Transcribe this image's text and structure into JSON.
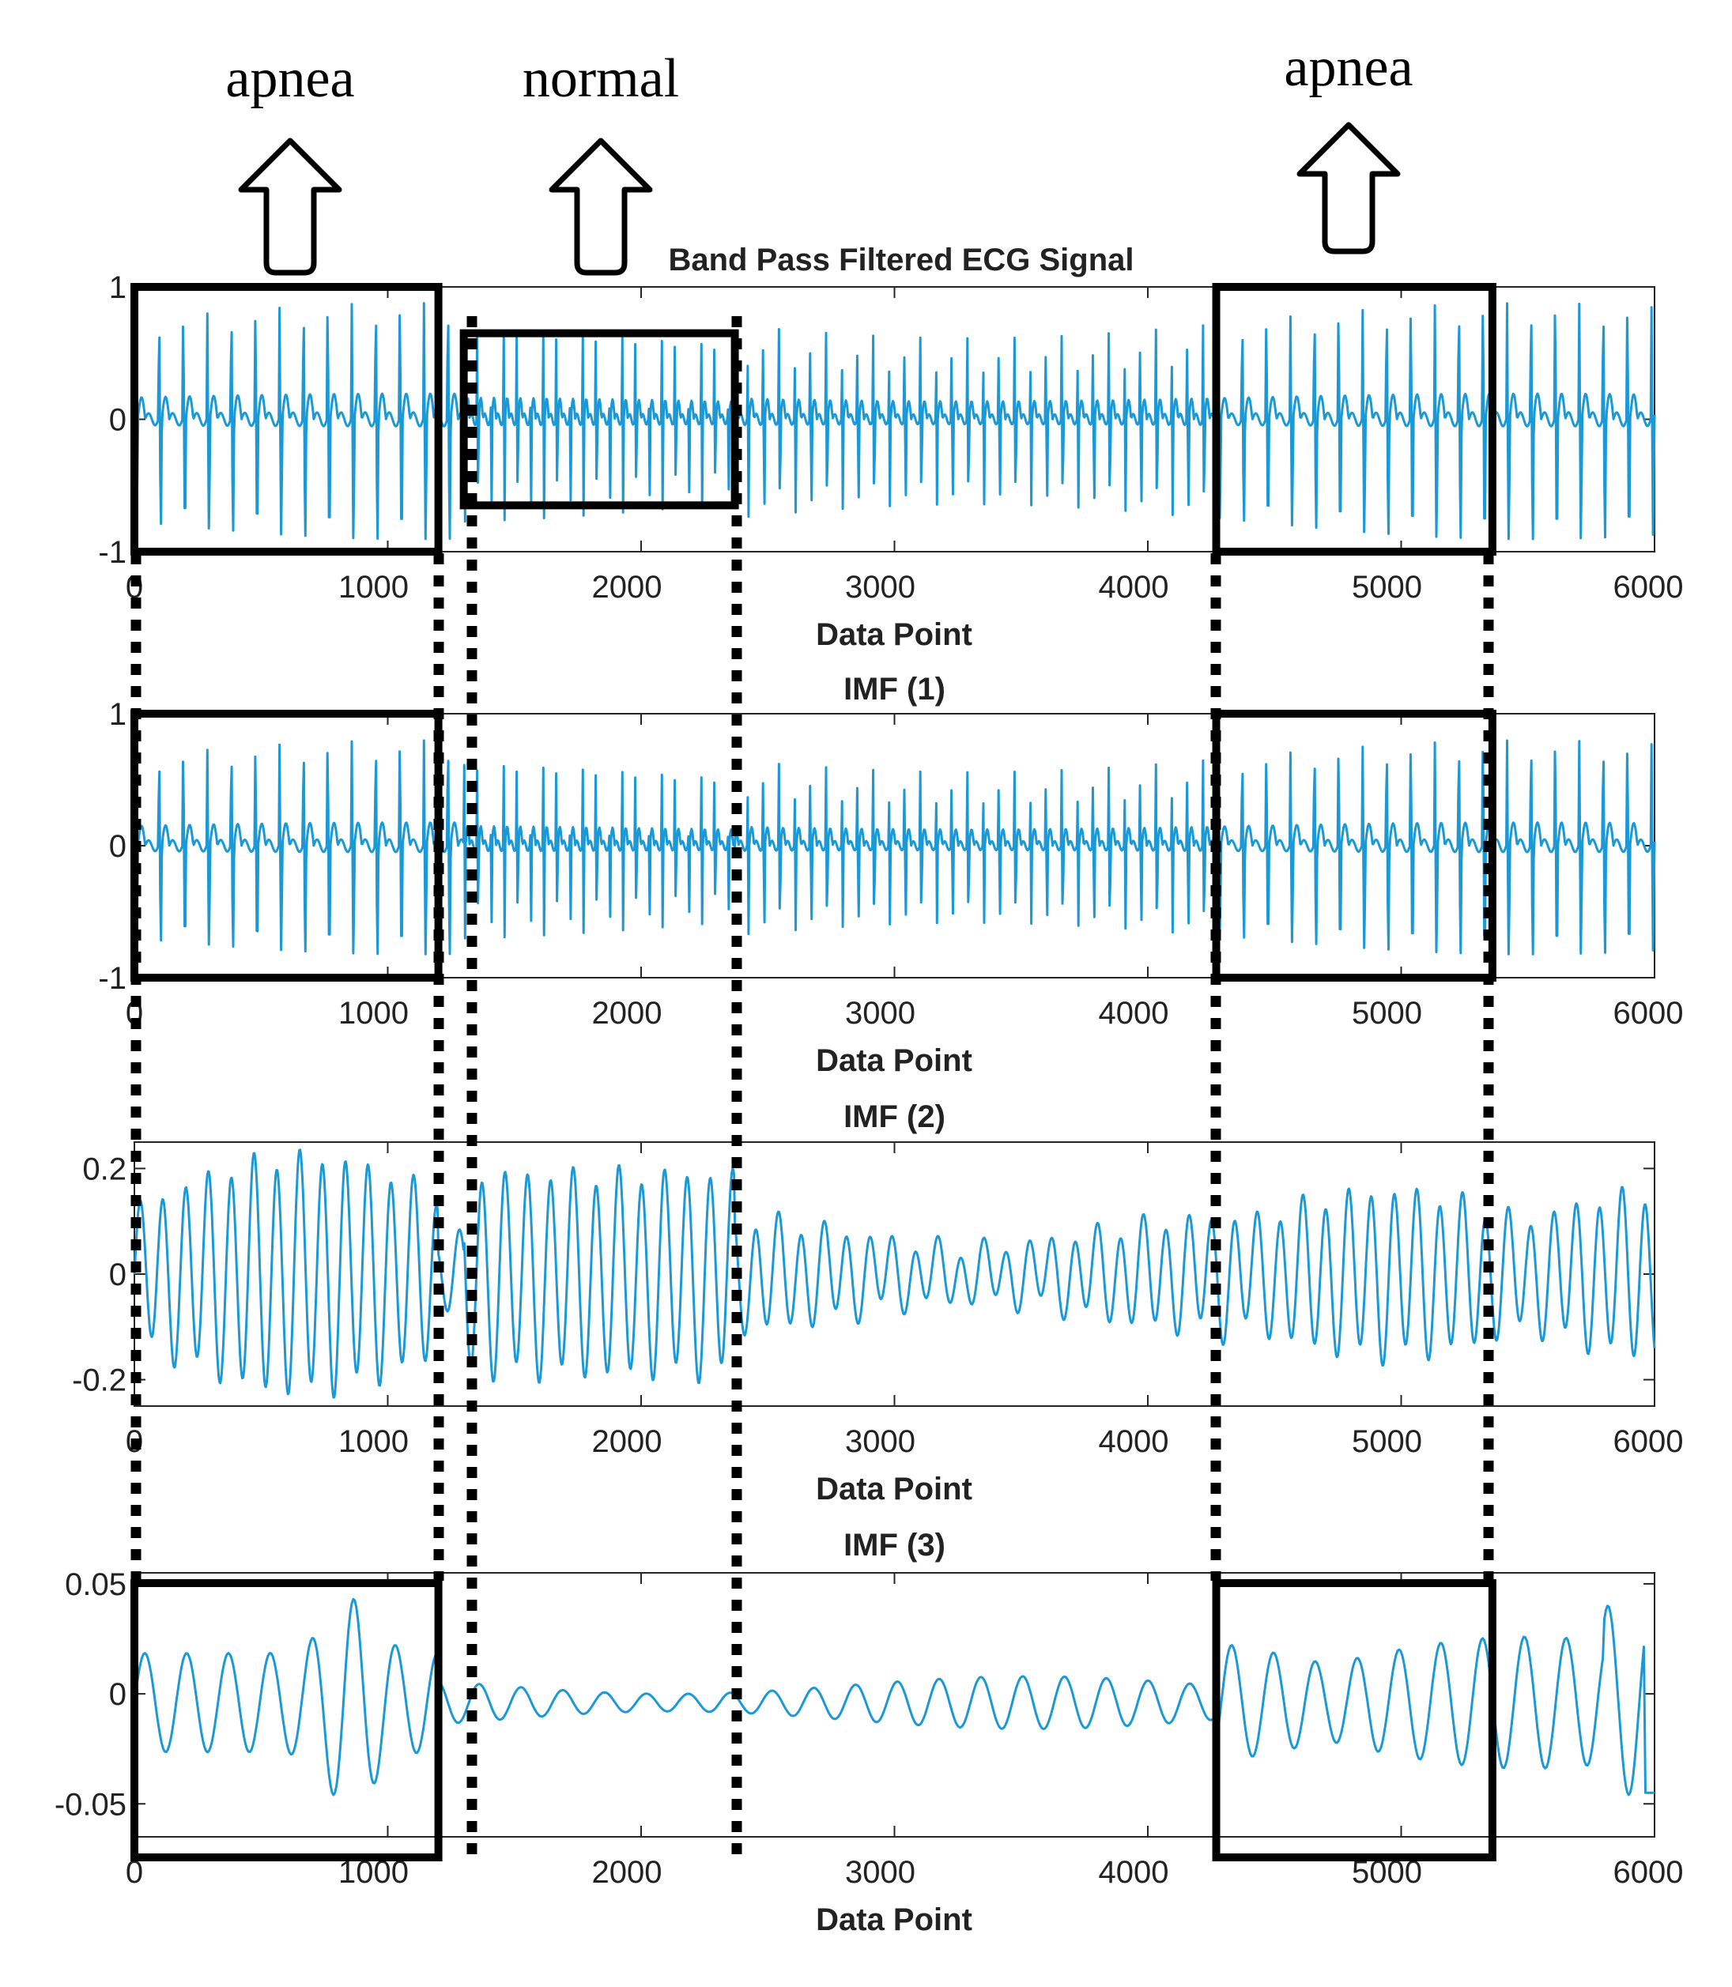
{
  "annotations": [
    {
      "label": "apnea",
      "x_center": 320
    },
    {
      "label": "normal",
      "x_center": 920
    },
    {
      "label": "apnea",
      "x_center": 4800
    }
  ],
  "chart_data": [
    {
      "type": "line",
      "title": "Band Pass Filtered ECG Signal",
      "xlabel": "Data Point",
      "xlim": [
        0,
        6000
      ],
      "ylim": [
        -1,
        1
      ],
      "xticks": [
        "0",
        "1000",
        "2000",
        "3000",
        "4000",
        "5000",
        "6000"
      ],
      "yticks": [
        {
          "v": 1,
          "t": "1"
        },
        {
          "v": 0,
          "t": "0"
        },
        {
          "v": -1,
          "t": "-1"
        }
      ],
      "beat_period": 90,
      "amplitude": 0.88,
      "boxes": [
        {
          "x": [
            0,
            1200
          ],
          "y": "full"
        },
        {
          "x": [
            1300,
            2370
          ],
          "y": [
            -0.65,
            0.65
          ]
        },
        {
          "x": [
            4270,
            5360
          ],
          "y": "full"
        }
      ]
    },
    {
      "type": "line",
      "title": "IMF (1)",
      "xlabel": "Data Point",
      "xlim": [
        0,
        6000
      ],
      "ylim": [
        -1,
        1
      ],
      "xticks": [
        "0",
        "1000",
        "2000",
        "3000",
        "4000",
        "5000",
        "6000"
      ],
      "yticks": [
        {
          "v": 1,
          "t": "1"
        },
        {
          "v": 0,
          "t": "0"
        },
        {
          "v": -1,
          "t": "-1"
        }
      ],
      "beat_period": 90,
      "amplitude": 0.8,
      "boxes": [
        {
          "x": [
            0,
            1200
          ],
          "y": "full"
        },
        {
          "x": [
            4270,
            5360
          ],
          "y": "full"
        }
      ]
    },
    {
      "type": "line",
      "title": "IMF (2)",
      "xlabel": "Data Point",
      "xlim": [
        0,
        6000
      ],
      "ylim": [
        -0.25,
        0.25
      ],
      "xticks": [
        "0",
        "1000",
        "2000",
        "3000",
        "4000",
        "5000",
        "6000"
      ],
      "yticks": [
        {
          "v": 0.2,
          "t": "0.2"
        },
        {
          "v": 0,
          "t": "0"
        },
        {
          "v": -0.2,
          "t": "-0.2"
        }
      ],
      "beat_period": 90,
      "amplitude": 0.13,
      "boxes": []
    },
    {
      "type": "line",
      "title": "IMF (3)",
      "xlabel": "Data Point",
      "xlim": [
        0,
        6000
      ],
      "ylim": [
        -0.065,
        0.055
      ],
      "xticks": [
        "0",
        "1000",
        "2000",
        "3000",
        "4000",
        "5000",
        "6000"
      ],
      "yticks": [
        {
          "v": 0.05,
          "t": "0.05"
        },
        {
          "v": 0,
          "t": "0"
        },
        {
          "v": -0.05,
          "t": "-0.05"
        }
      ],
      "beat_period": 180,
      "amplitude": 0.02,
      "boxes": [
        {
          "x": [
            0,
            1200
          ],
          "y": "full"
        },
        {
          "x": [
            4270,
            5360
          ],
          "y": "full"
        }
      ]
    }
  ],
  "segment_lines_x": [
    0,
    1200,
    1300,
    2370,
    4270,
    5360
  ]
}
